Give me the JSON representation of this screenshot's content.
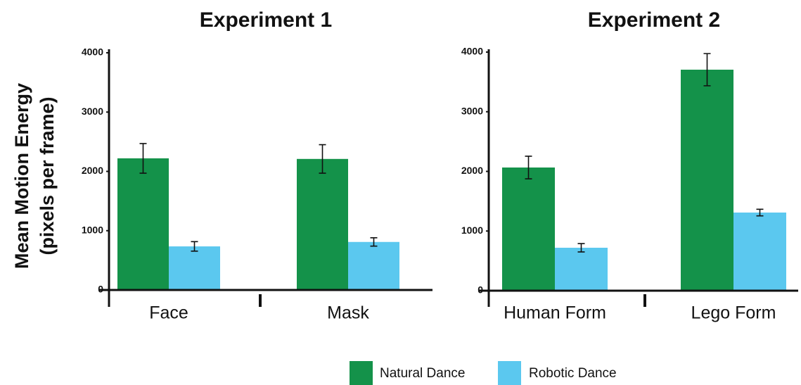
{
  "chart_data": [
    {
      "type": "bar",
      "title": "Experiment 1",
      "ylabel": [
        "Mean Motion Energy",
        "(pixels per frame)"
      ],
      "categories": [
        "Face",
        "Mask"
      ],
      "series": [
        {
          "name": "Natural Dance",
          "color": "#14924a",
          "values": [
            2220,
            2210
          ],
          "errors": [
            250,
            240
          ]
        },
        {
          "name": "Robotic Dance",
          "color": "#5bc8ef",
          "values": [
            735,
            810
          ],
          "errors": [
            80,
            70
          ]
        }
      ],
      "ylim": [
        0,
        4000
      ],
      "yticks": [
        0,
        1000,
        2000,
        3000,
        4000
      ]
    },
    {
      "type": "bar",
      "title": "Experiment 2",
      "categories": [
        "Human Form",
        "Lego Form"
      ],
      "series": [
        {
          "name": "Natural Dance",
          "color": "#14924a",
          "values": [
            2065,
            3705
          ],
          "errors": [
            190,
            270
          ]
        },
        {
          "name": "Robotic Dance",
          "color": "#5bc8ef",
          "values": [
            720,
            1310
          ],
          "errors": [
            70,
            55
          ]
        }
      ],
      "ylim": [
        0,
        4000
      ],
      "yticks": [
        0,
        1000,
        2000,
        3000,
        4000
      ]
    }
  ]
}
